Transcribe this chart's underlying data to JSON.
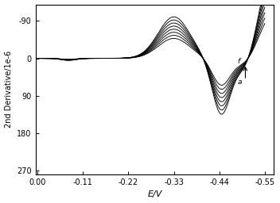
{
  "title": "",
  "xlabel": "E/V",
  "ylabel": "2nd Derivative/1e⁻⁶",
  "ylabel_display": "2nd Derivative/1e-6",
  "xlim": [
    0.0,
    -0.57
  ],
  "ylim": [
    280,
    -130
  ],
  "xticks": [
    0.0,
    -0.11,
    -0.22,
    -0.33,
    -0.44,
    -0.55
  ],
  "yticks": [
    -90,
    0,
    90,
    180,
    270
  ],
  "n_curves": 8,
  "background_color": "#ffffff",
  "line_color": "#000000",
  "annotation_f": "f",
  "annotation_a": "a"
}
